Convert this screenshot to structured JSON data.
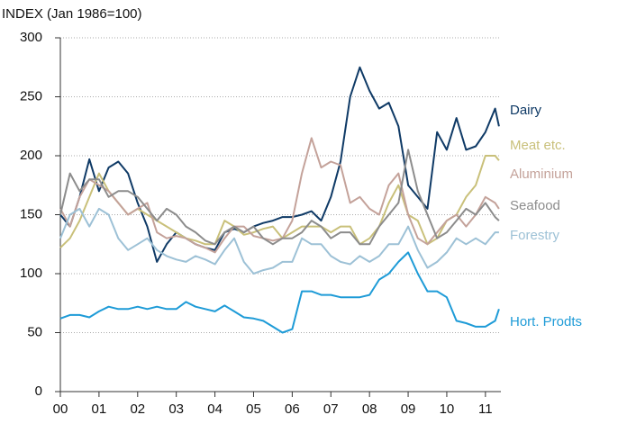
{
  "chart_data": {
    "type": "line",
    "title": "INDEX (Jan 1986=100)",
    "x": [
      2000,
      2000.25,
      2000.5,
      2000.75,
      2001,
      2001.25,
      2001.5,
      2001.75,
      2002,
      2002.25,
      2002.5,
      2002.75,
      2003,
      2003.25,
      2003.5,
      2003.75,
      2004,
      2004.25,
      2004.5,
      2004.75,
      2005,
      2005.25,
      2005.5,
      2005.75,
      2006,
      2006.25,
      2006.5,
      2006.75,
      2007,
      2007.25,
      2007.5,
      2007.75,
      2008,
      2008.25,
      2008.5,
      2008.75,
      2009,
      2009.25,
      2009.5,
      2009.75,
      2010,
      2010.25,
      2010.5,
      2010.75,
      2011,
      2011.25,
      2011.35
    ],
    "series": [
      {
        "name": "Dairy",
        "color": "#0f3a66",
        "values": [
          150,
          140,
          165,
          197,
          170,
          190,
          195,
          185,
          160,
          140,
          110,
          125,
          135,
          130,
          125,
          122,
          120,
          135,
          138,
          135,
          140,
          143,
          145,
          148,
          148,
          150,
          153,
          145,
          165,
          195,
          250,
          275,
          255,
          240,
          245,
          225,
          175,
          165,
          155,
          220,
          205,
          232,
          205,
          208,
          220,
          240,
          225
        ]
      },
      {
        "name": "Meat etc.",
        "color": "#c9c07a",
        "values": [
          122,
          130,
          145,
          165,
          185,
          170,
          160,
          150,
          155,
          150,
          145,
          140,
          135,
          130,
          128,
          125,
          125,
          145,
          140,
          133,
          135,
          138,
          140,
          130,
          135,
          140,
          140,
          140,
          135,
          140,
          140,
          125,
          130,
          140,
          160,
          175,
          150,
          145,
          125,
          130,
          145,
          150,
          165,
          175,
          200,
          200,
          196
        ]
      },
      {
        "name": "Aluminium",
        "color": "#c4a29a",
        "values": [
          155,
          140,
          165,
          180,
          175,
          170,
          160,
          150,
          155,
          160,
          135,
          130,
          132,
          130,
          125,
          122,
          118,
          130,
          140,
          140,
          132,
          130,
          128,
          130,
          145,
          185,
          215,
          190,
          195,
          192,
          160,
          165,
          155,
          150,
          175,
          185,
          150,
          130,
          125,
          135,
          145,
          150,
          140,
          150,
          165,
          160,
          155
        ]
      },
      {
        "name": "Seafood",
        "color": "#8c8c8c",
        "values": [
          150,
          185,
          170,
          180,
          180,
          165,
          170,
          170,
          165,
          155,
          145,
          155,
          150,
          140,
          135,
          128,
          125,
          135,
          140,
          135,
          140,
          130,
          125,
          130,
          130,
          135,
          145,
          140,
          130,
          135,
          135,
          125,
          125,
          140,
          150,
          160,
          205,
          170,
          150,
          130,
          135,
          145,
          155,
          150,
          160,
          148,
          145
        ]
      },
      {
        "name": "Forestry",
        "color": "#9dc1d6",
        "values": [
          130,
          150,
          155,
          140,
          155,
          150,
          130,
          120,
          125,
          130,
          120,
          115,
          112,
          110,
          115,
          112,
          108,
          120,
          130,
          110,
          100,
          103,
          105,
          110,
          110,
          130,
          125,
          125,
          115,
          110,
          108,
          115,
          110,
          115,
          125,
          125,
          140,
          120,
          105,
          110,
          118,
          130,
          125,
          130,
          125,
          135,
          135
        ]
      },
      {
        "name": "Hort. Prodts",
        "color": "#1e9bd7",
        "values": [
          62,
          65,
          65,
          63,
          68,
          72,
          70,
          70,
          72,
          70,
          72,
          70,
          70,
          76,
          72,
          70,
          68,
          73,
          68,
          63,
          62,
          60,
          55,
          50,
          53,
          85,
          85,
          82,
          82,
          80,
          80,
          80,
          82,
          95,
          100,
          110,
          118,
          100,
          85,
          85,
          80,
          60,
          58,
          55,
          55,
          60,
          70
        ]
      }
    ],
    "xlim": [
      2000,
      2011.4
    ],
    "xticks": [
      {
        "value": 2000,
        "label": "00"
      },
      {
        "value": 2001,
        "label": "01"
      },
      {
        "value": 2002,
        "label": "02"
      },
      {
        "value": 2003,
        "label": "03"
      },
      {
        "value": 2004,
        "label": "04"
      },
      {
        "value": 2005,
        "label": "05"
      },
      {
        "value": 2006,
        "label": "06"
      },
      {
        "value": 2007,
        "label": "07"
      },
      {
        "value": 2008,
        "label": "08"
      },
      {
        "value": 2009,
        "label": "09"
      },
      {
        "value": 2010,
        "label": "10"
      },
      {
        "value": 2011,
        "label": "11"
      }
    ],
    "ylim": [
      0,
      300
    ],
    "yticks": [
      0,
      50,
      100,
      150,
      200,
      250,
      300
    ],
    "grid": true
  }
}
